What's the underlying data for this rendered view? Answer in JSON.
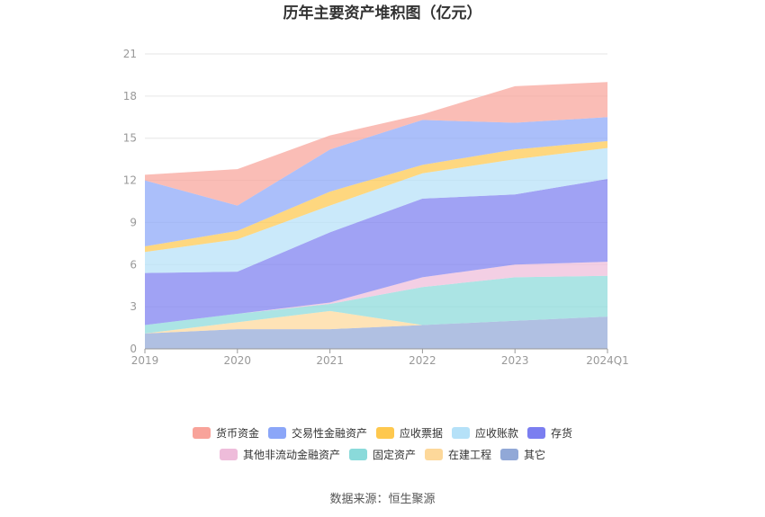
{
  "chart_data": {
    "type": "area",
    "stacked": true,
    "title": "历年主要资产堆积图（亿元）",
    "categories": [
      "2019",
      "2020",
      "2021",
      "2022",
      "2023",
      "2024Q1"
    ],
    "ylim": [
      0,
      21
    ],
    "yticks": [
      "0",
      "3",
      "6",
      "9",
      "12",
      "15",
      "18",
      "21"
    ],
    "grid": true,
    "legend_position": "bottom",
    "series": [
      {
        "name": "其它",
        "color": "#91a8d7",
        "values": [
          1.1,
          1.4,
          1.4,
          1.7,
          2.0,
          2.3
        ]
      },
      {
        "name": "在建工程",
        "color": "#fdd89a",
        "values": [
          0.0,
          0.5,
          1.3,
          0.0,
          0.0,
          0.0
        ]
      },
      {
        "name": "固定资产",
        "color": "#8adada",
        "values": [
          0.6,
          0.6,
          0.5,
          2.7,
          3.1,
          2.9
        ]
      },
      {
        "name": "其他非流动金融资产",
        "color": "#eebcda",
        "values": [
          0.0,
          0.0,
          0.1,
          0.7,
          0.9,
          1.0
        ]
      },
      {
        "name": "存货",
        "color": "#7b7ef0",
        "values": [
          3.7,
          3.0,
          5.0,
          5.6,
          5.0,
          5.9
        ]
      },
      {
        "name": "应收账款",
        "color": "#b5e1f8",
        "values": [
          1.5,
          2.3,
          1.9,
          1.8,
          2.5,
          2.2
        ]
      },
      {
        "name": "应收票据",
        "color": "#fec84e",
        "values": [
          0.4,
          0.6,
          1.0,
          0.6,
          0.7,
          0.5
        ]
      },
      {
        "name": "交易性金融资产",
        "color": "#8ba6f8",
        "values": [
          4.7,
          1.8,
          3.0,
          3.2,
          1.9,
          1.7
        ]
      },
      {
        "name": "货币资金",
        "color": "#f8a39a",
        "values": [
          0.4,
          2.6,
          1.0,
          0.4,
          2.6,
          2.5
        ]
      }
    ],
    "legend_order": [
      "货币资金",
      "交易性金融资产",
      "应收票据",
      "应收账款",
      "存货",
      "其他非流动金融资产",
      "固定资产",
      "在建工程",
      "其它"
    ]
  },
  "source": "数据来源：恒生聚源"
}
